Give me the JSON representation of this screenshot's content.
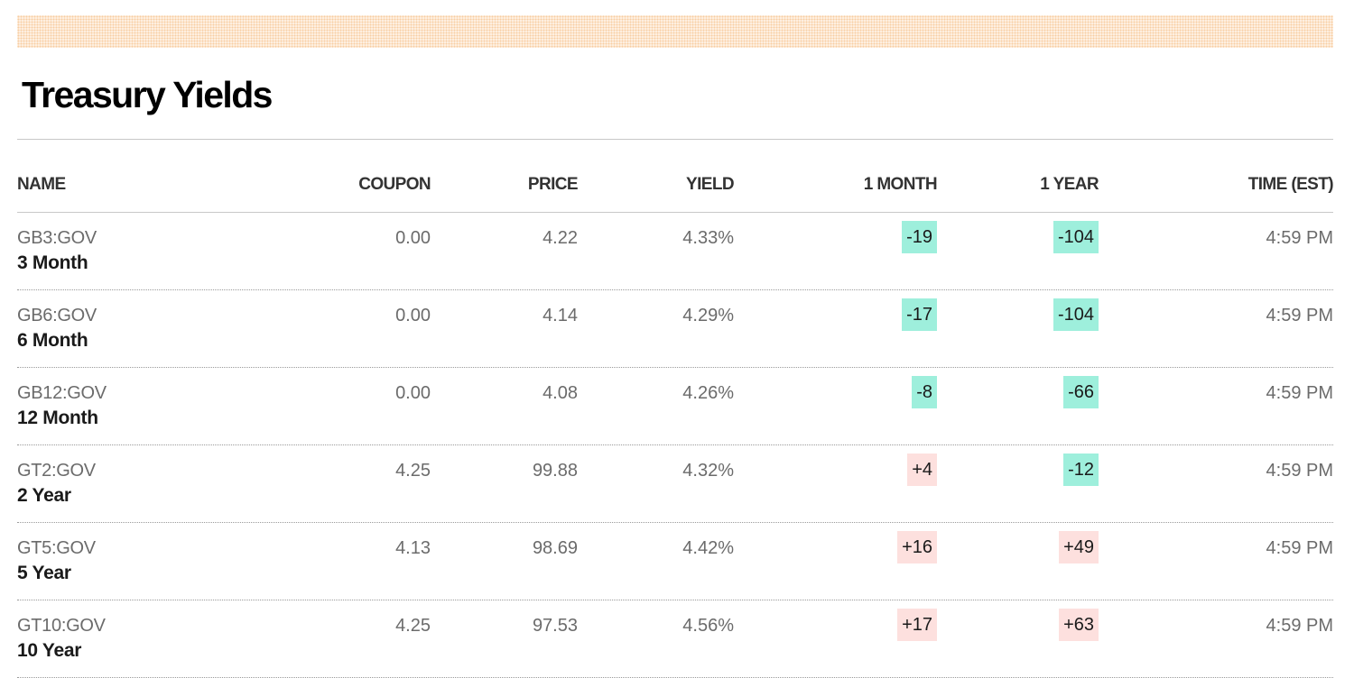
{
  "page": {
    "title": "Treasury Yields"
  },
  "colors": {
    "negative_change_bg": "#9eefdc",
    "positive_change_bg": "#fde0de",
    "band_dots": "#f6c89b"
  },
  "table": {
    "columns": [
      "NAME",
      "COUPON",
      "PRICE",
      "YIELD",
      "1 MONTH",
      "1 YEAR",
      "TIME (EST)"
    ],
    "rows": [
      {
        "ticker": "GB3:GOV",
        "term": "3 Month",
        "coupon": "0.00",
        "price": "4.22",
        "yield": "4.33%",
        "month": "-19",
        "year": "-104",
        "time": "4:59 PM"
      },
      {
        "ticker": "GB6:GOV",
        "term": "6 Month",
        "coupon": "0.00",
        "price": "4.14",
        "yield": "4.29%",
        "month": "-17",
        "year": "-104",
        "time": "4:59 PM"
      },
      {
        "ticker": "GB12:GOV",
        "term": "12 Month",
        "coupon": "0.00",
        "price": "4.08",
        "yield": "4.26%",
        "month": "-8",
        "year": "-66",
        "time": "4:59 PM"
      },
      {
        "ticker": "GT2:GOV",
        "term": "2 Year",
        "coupon": "4.25",
        "price": "99.88",
        "yield": "4.32%",
        "month": "+4",
        "year": "-12",
        "time": "4:59 PM"
      },
      {
        "ticker": "GT5:GOV",
        "term": "5 Year",
        "coupon": "4.13",
        "price": "98.69",
        "yield": "4.42%",
        "month": "+16",
        "year": "+49",
        "time": "4:59 PM"
      },
      {
        "ticker": "GT10:GOV",
        "term": "10 Year",
        "coupon": "4.25",
        "price": "97.53",
        "yield": "4.56%",
        "month": "+17",
        "year": "+63",
        "time": "4:59 PM"
      }
    ]
  }
}
